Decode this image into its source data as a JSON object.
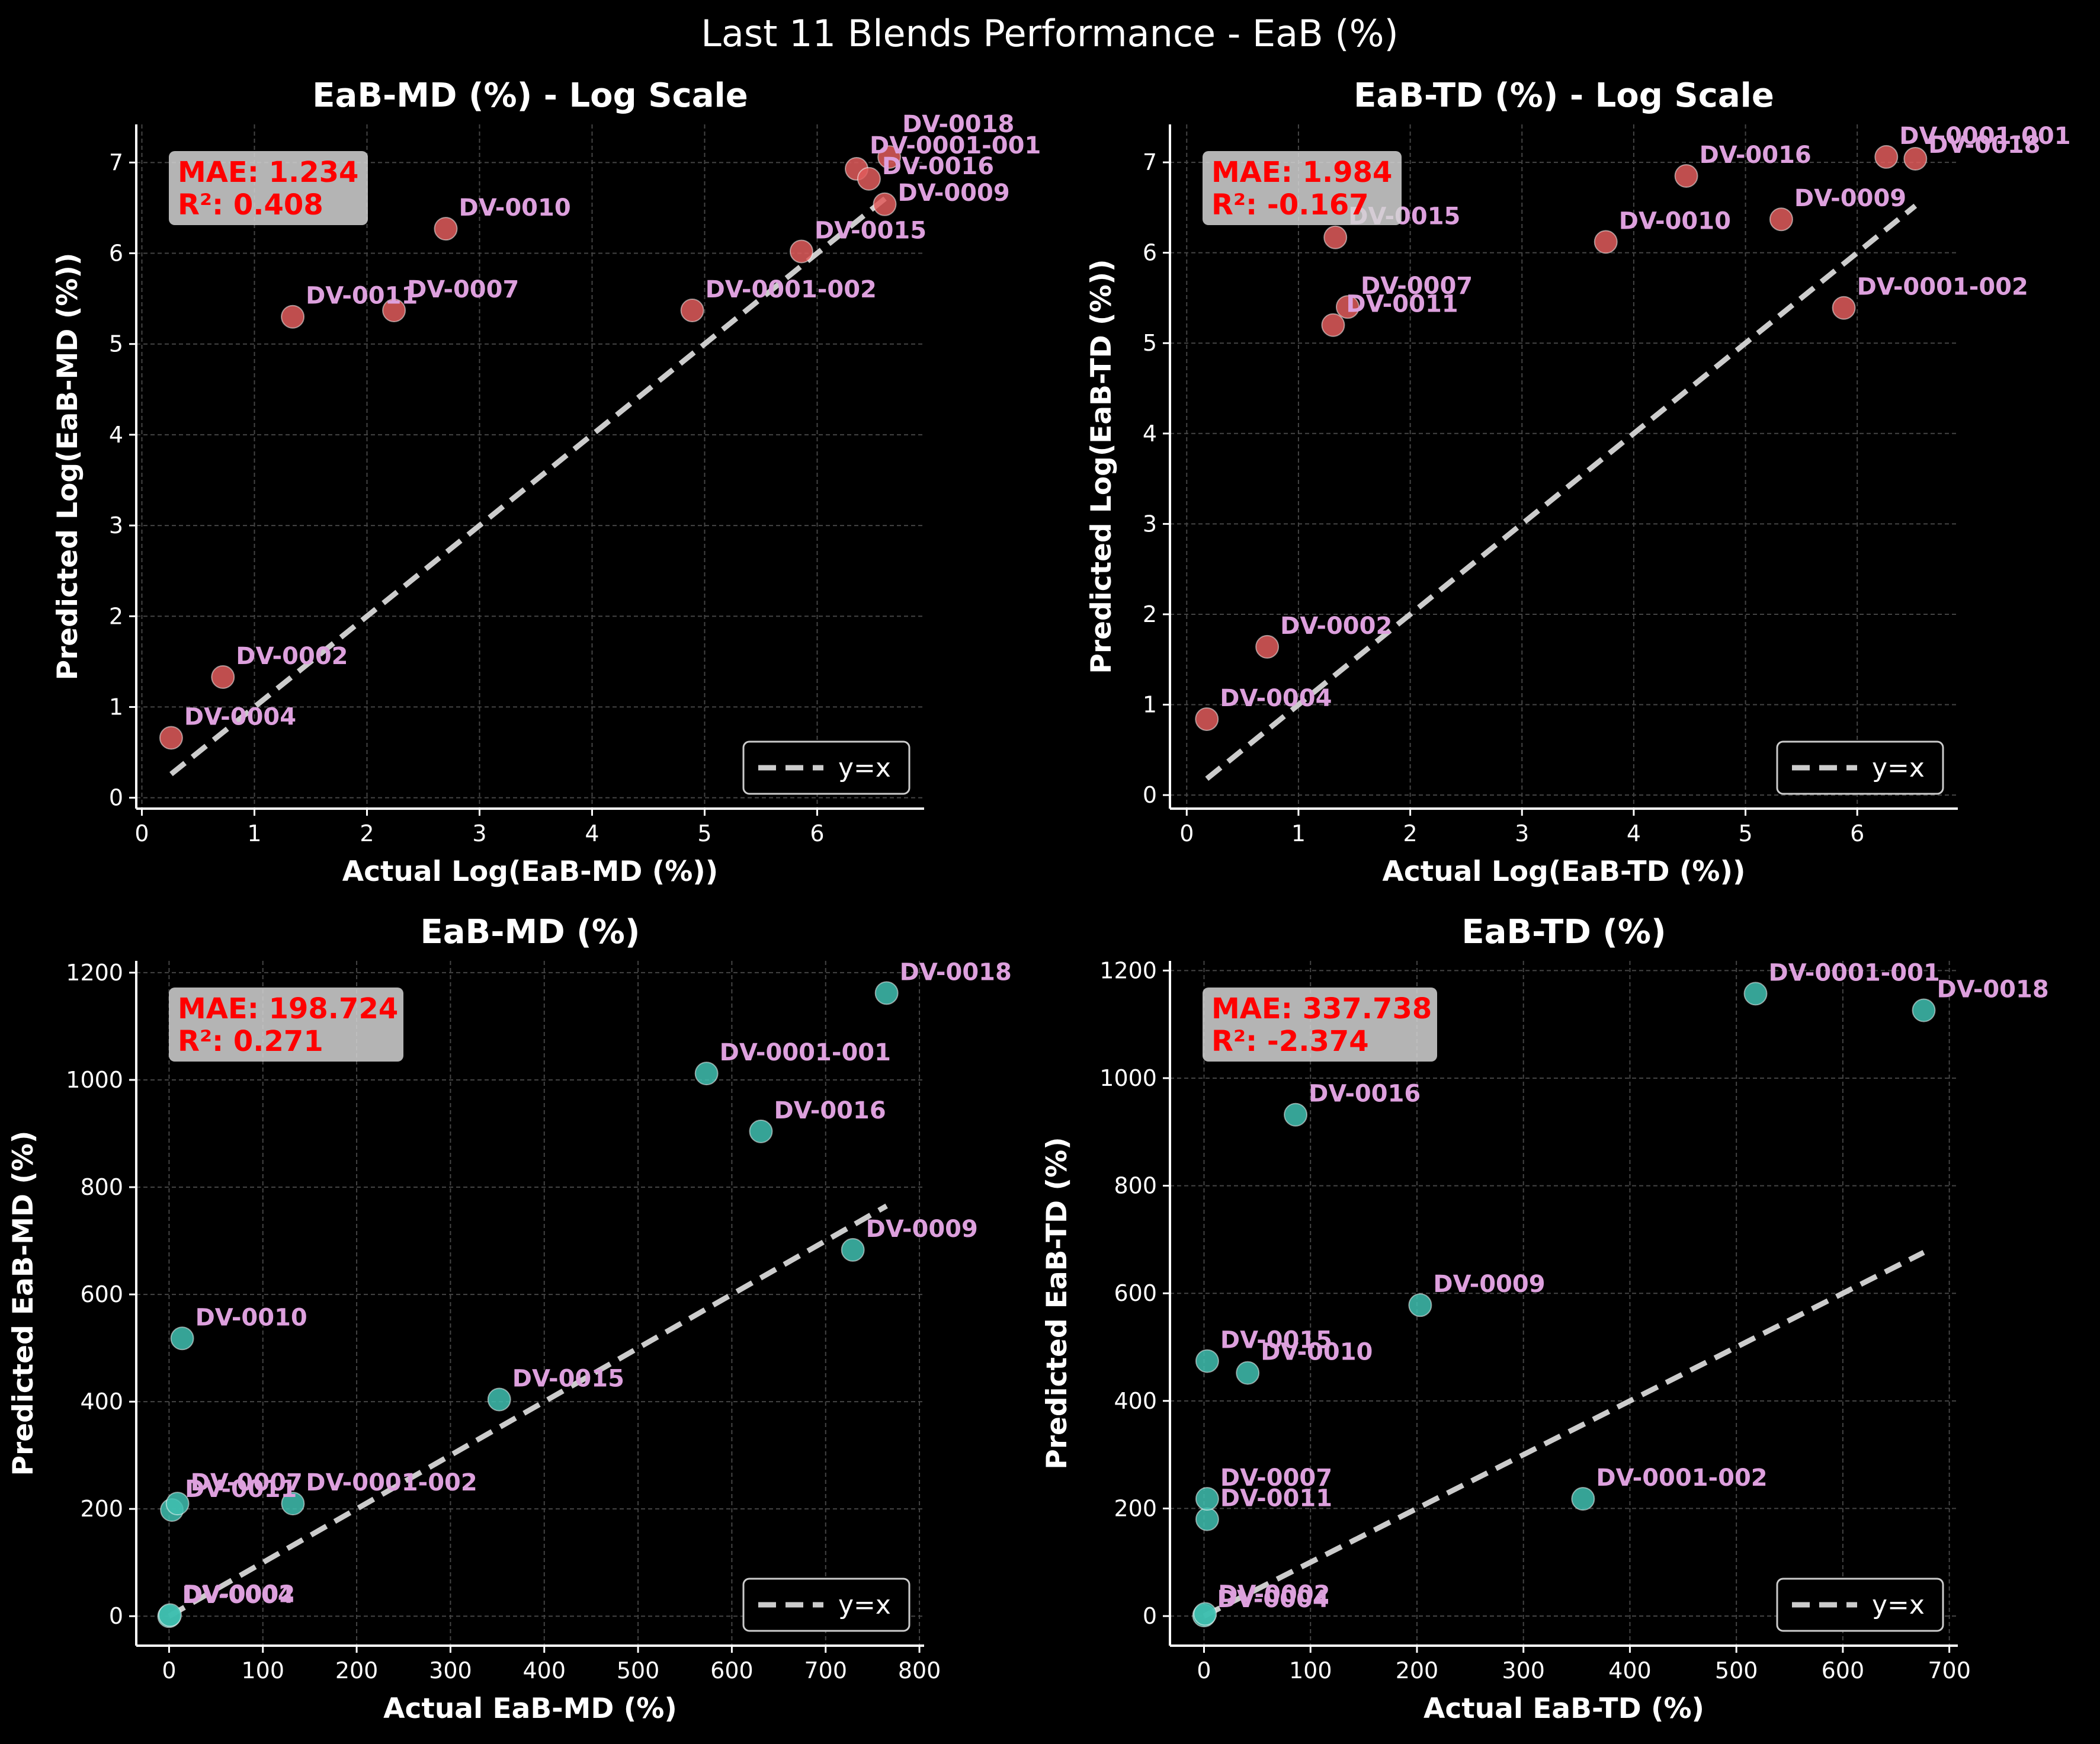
{
  "title": "Last 11 Blends Performance - EaB (%)",
  "colors": {
    "background": "#000000",
    "log_points": "#e05c5c",
    "linear_points": "#40c0b0",
    "point_labels": "#dda0dd",
    "stats_text": "#ff0000",
    "stats_box": "#d3d3d3",
    "ideal_line": "#cccccc"
  },
  "chart_data": [
    {
      "type": "scatter",
      "title": "EaB-MD (%) - Log Scale",
      "xlabel": "Actual Log(EaB-MD (%))",
      "ylabel": "Predicted Log(EaB-MD (%))",
      "xlim": [
        -0.05,
        6.95
      ],
      "ylim": [
        -0.12,
        7.42
      ],
      "xticks": [
        0,
        1,
        2,
        3,
        4,
        5,
        6
      ],
      "yticks": [
        0,
        1,
        2,
        3,
        4,
        5,
        6,
        7
      ],
      "grid": true,
      "point_color": "#e05c5c",
      "mae_label": "MAE: 1.234",
      "r2_label": "R²: 0.408",
      "legend_label": "y=x",
      "legend_position": "lower right",
      "ideal_line": [
        0.26,
        6.62
      ],
      "points": [
        {
          "label": "DV-0004",
          "x": 0.26,
          "y": 0.66
        },
        {
          "label": "DV-0002",
          "x": 0.72,
          "y": 1.33
        },
        {
          "label": "DV-0011",
          "x": 1.34,
          "y": 5.3
        },
        {
          "label": "DV-0007",
          "x": 2.24,
          "y": 5.37
        },
        {
          "label": "DV-0010",
          "x": 2.7,
          "y": 6.27
        },
        {
          "label": "DV-0001-002",
          "x": 4.89,
          "y": 5.37
        },
        {
          "label": "DV-0015",
          "x": 5.86,
          "y": 6.02
        },
        {
          "label": "DV-0001-001",
          "x": 6.35,
          "y": 6.93
        },
        {
          "label": "DV-0016",
          "x": 6.46,
          "y": 6.82
        },
        {
          "label": "DV-0009",
          "x": 6.6,
          "y": 6.54
        },
        {
          "label": "DV-0018",
          "x": 6.64,
          "y": 7.06
        }
      ]
    },
    {
      "type": "scatter",
      "title": "EaB-TD (%) - Log Scale",
      "xlabel": "Actual Log(EaB-TD (%))",
      "ylabel": "Predicted Log(EaB-TD (%))",
      "xlim": [
        -0.15,
        6.9
      ],
      "ylim": [
        -0.15,
        7.42
      ],
      "xticks": [
        0,
        1,
        2,
        3,
        4,
        5,
        6
      ],
      "yticks": [
        0,
        1,
        2,
        3,
        4,
        5,
        6,
        7
      ],
      "grid": true,
      "point_color": "#e05c5c",
      "mae_label": "MAE: 1.984",
      "r2_label": "R²: -0.167",
      "legend_label": "y=x",
      "legend_position": "lower right",
      "ideal_line": [
        0.18,
        6.52
      ],
      "points": [
        {
          "label": "DV-0004",
          "x": 0.18,
          "y": 0.84
        },
        {
          "label": "DV-0002",
          "x": 0.72,
          "y": 1.64
        },
        {
          "label": "DV-0011",
          "x": 1.31,
          "y": 5.2
        },
        {
          "label": "DV-0007",
          "x": 1.44,
          "y": 5.4
        },
        {
          "label": "DV-0015",
          "x": 1.33,
          "y": 6.17
        },
        {
          "label": "DV-0010",
          "x": 3.75,
          "y": 6.12
        },
        {
          "label": "DV-0016",
          "x": 4.47,
          "y": 6.85
        },
        {
          "label": "DV-0009",
          "x": 5.32,
          "y": 6.37
        },
        {
          "label": "DV-0001-002",
          "x": 5.88,
          "y": 5.39
        },
        {
          "label": "DV-0001-001",
          "x": 6.26,
          "y": 7.06
        },
        {
          "label": "DV-0018",
          "x": 6.52,
          "y": 7.04
        }
      ]
    },
    {
      "type": "scatter",
      "title": "EaB-MD (%)",
      "xlabel": "Actual EaB-MD (%)",
      "ylabel": "Predicted EaB-MD (%)",
      "xlim": [
        -35,
        805
      ],
      "ylim": [
        -55,
        1222
      ],
      "xticks": [
        0,
        100,
        200,
        300,
        400,
        500,
        600,
        700,
        800
      ],
      "yticks": [
        0,
        200,
        400,
        600,
        800,
        1000,
        1200
      ],
      "grid": true,
      "point_color": "#40c0b0",
      "mae_label": "MAE: 198.724",
      "r2_label": "R²: 0.271",
      "legend_label": "y=x",
      "legend_position": "lower right",
      "ideal_line": [
        0,
        765
      ],
      "points": [
        {
          "label": "DV-0004",
          "x": 0,
          "y": 0
        },
        {
          "label": "DV-0002",
          "x": 1,
          "y": 2
        },
        {
          "label": "DV-0011",
          "x": 3,
          "y": 198
        },
        {
          "label": "DV-0007",
          "x": 9,
          "y": 210
        },
        {
          "label": "DV-0010",
          "x": 14,
          "y": 518
        },
        {
          "label": "DV-0001-002",
          "x": 132,
          "y": 210
        },
        {
          "label": "DV-0015",
          "x": 352,
          "y": 404
        },
        {
          "label": "DV-0001-001",
          "x": 573,
          "y": 1012
        },
        {
          "label": "DV-0016",
          "x": 631,
          "y": 904
        },
        {
          "label": "DV-0009",
          "x": 729,
          "y": 683
        },
        {
          "label": "DV-0018",
          "x": 765,
          "y": 1162
        }
      ]
    },
    {
      "type": "scatter",
      "title": "EaB-TD (%)",
      "xlabel": "Actual EaB-TD (%)",
      "ylabel": "Predicted EaB-TD (%)",
      "xlim": [
        -32,
        708
      ],
      "ylim": [
        -55,
        1218
      ],
      "xticks": [
        0,
        100,
        200,
        300,
        400,
        500,
        600,
        700
      ],
      "yticks": [
        0,
        200,
        400,
        600,
        800,
        1000,
        1200
      ],
      "grid": true,
      "point_color": "#40c0b0",
      "mae_label": "MAE: 337.738",
      "r2_label": "R²: -2.374",
      "legend_label": "y=x",
      "legend_position": "lower right",
      "ideal_line": [
        0,
        676
      ],
      "points": [
        {
          "label": "DV-0004",
          "x": 0,
          "y": 1
        },
        {
          "label": "DV-0002",
          "x": 1,
          "y": 4
        },
        {
          "label": "DV-0011",
          "x": 3,
          "y": 180
        },
        {
          "label": "DV-0007",
          "x": 3,
          "y": 218
        },
        {
          "label": "DV-0015",
          "x": 3,
          "y": 474
        },
        {
          "label": "DV-0010",
          "x": 41,
          "y": 452
        },
        {
          "label": "DV-0016",
          "x": 86,
          "y": 932
        },
        {
          "label": "DV-0009",
          "x": 203,
          "y": 578
        },
        {
          "label": "DV-0001-002",
          "x": 356,
          "y": 218
        },
        {
          "label": "DV-0001-001",
          "x": 518,
          "y": 1157
        },
        {
          "label": "DV-0018",
          "x": 676,
          "y": 1126
        }
      ]
    }
  ]
}
